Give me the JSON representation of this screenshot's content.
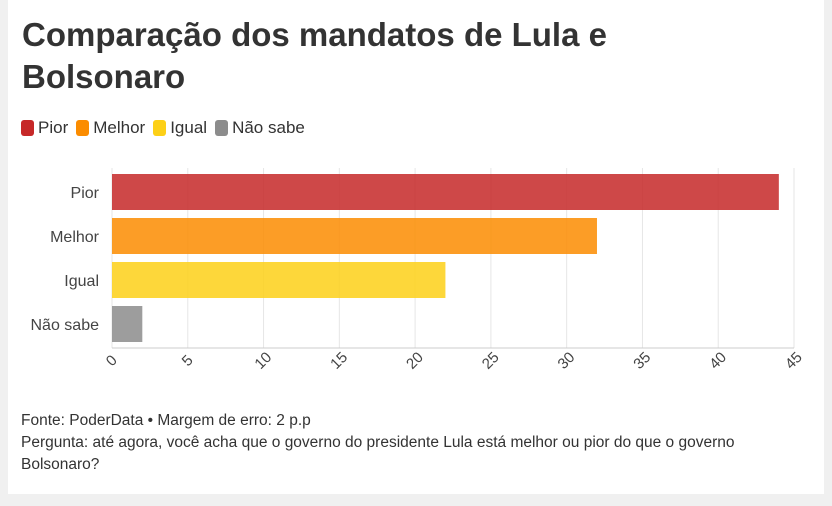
{
  "title": "Comparação dos mandatos de Lula e Bolsonaro",
  "legend": [
    {
      "label": "Pior",
      "color": "#c62828"
    },
    {
      "label": "Melhor",
      "color": "#fb8c00"
    },
    {
      "label": "Igual",
      "color": "#fdd017"
    },
    {
      "label": "Não sabe",
      "color": "#8c8c8c"
    }
  ],
  "chart_data": {
    "type": "bar",
    "orientation": "horizontal",
    "categories": [
      "Pior",
      "Melhor",
      "Igual",
      "Não sabe"
    ],
    "values": [
      44,
      32,
      22,
      2
    ],
    "colors": [
      "#c62828",
      "#fb8c00",
      "#fdd017",
      "#8c8c8c"
    ],
    "xlim": [
      0,
      45
    ],
    "xticks": [
      0,
      5,
      10,
      15,
      20,
      25,
      30,
      35,
      40,
      45
    ],
    "grid": true,
    "legend_position": "top-left"
  },
  "notes": {
    "source": "Fonte: PoderData • Margem de erro: 2 p.p",
    "question": "Pergunta: até agora, você acha que o governo do presidente Lula está melhor ou pior do que o governo Bolsonaro?"
  }
}
